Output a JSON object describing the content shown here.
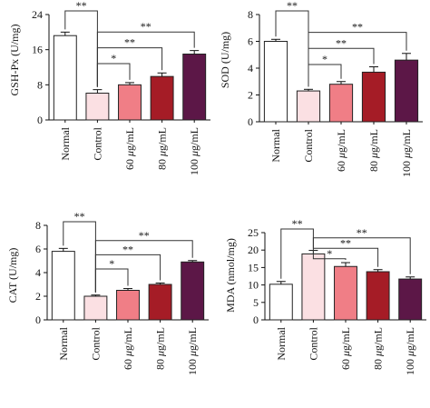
{
  "colors": {
    "Normal": "#ffffff",
    "Control": "#fbe0e3",
    "60 μg/mL": "#f07e86",
    "80 μg/mL": "#a51c26",
    "100 μg/mL": "#5c1747"
  },
  "chart_data": [
    {
      "type": "bar",
      "ylabel": "GSH-Px (U/mg)",
      "ylim": [
        0,
        24
      ],
      "yticks": [
        0,
        8,
        16,
        24
      ],
      "categories": [
        "Normal",
        "Control",
        "60 μg/mL",
        "80 μg/mL",
        "100 μg/mL"
      ],
      "values": [
        19.2,
        6.1,
        8.0,
        9.9,
        15.0
      ],
      "errors": [
        0.8,
        0.8,
        0.5,
        0.8,
        0.8
      ],
      "significance": [
        {
          "from": "Normal",
          "to": "Control",
          "label": "**"
        },
        {
          "from": "Control",
          "to": "60 μg/mL",
          "label": "*"
        },
        {
          "from": "Control",
          "to": "80 μg/mL",
          "label": "**"
        },
        {
          "from": "Control",
          "to": "100 μg/mL",
          "label": "**"
        }
      ]
    },
    {
      "type": "bar",
      "ylabel": "SOD (U/mg)",
      "ylim": [
        0,
        8
      ],
      "yticks": [
        0,
        2,
        4,
        6,
        8
      ],
      "categories": [
        "Normal",
        "Control",
        "60 μg/mL",
        "80 μg/mL",
        "100 μg/mL"
      ],
      "values": [
        6.0,
        2.3,
        2.8,
        3.7,
        4.6
      ],
      "errors": [
        0.15,
        0.12,
        0.2,
        0.4,
        0.5
      ],
      "significance": [
        {
          "from": "Normal",
          "to": "Control",
          "label": "**"
        },
        {
          "from": "Control",
          "to": "60 μg/mL",
          "label": "*"
        },
        {
          "from": "Control",
          "to": "80 μg/mL",
          "label": "**"
        },
        {
          "from": "Control",
          "to": "100 μg/mL",
          "label": "**"
        }
      ]
    },
    {
      "type": "bar",
      "ylabel": "CAT (U/mg)",
      "ylim": [
        0,
        8
      ],
      "yticks": [
        0,
        2,
        4,
        6,
        8
      ],
      "categories": [
        "Normal",
        "Control",
        "60 μg/mL",
        "80 μg/mL",
        "100 μg/mL"
      ],
      "values": [
        5.8,
        2.0,
        2.5,
        3.0,
        4.9
      ],
      "errors": [
        0.25,
        0.1,
        0.15,
        0.12,
        0.12
      ],
      "significance": [
        {
          "from": "Normal",
          "to": "Control",
          "label": "**"
        },
        {
          "from": "Control",
          "to": "60 μg/mL",
          "label": "*"
        },
        {
          "from": "Control",
          "to": "80 μg/mL",
          "label": "**"
        },
        {
          "from": "Control",
          "to": "100 μg/mL",
          "label": "**"
        }
      ]
    },
    {
      "type": "bar",
      "ylabel": "MDA (nmol/mg)",
      "ylim": [
        0,
        25
      ],
      "yticks": [
        0,
        5,
        10,
        15,
        20,
        25
      ],
      "categories": [
        "Normal",
        "Control",
        "60 μg/mL",
        "80 μg/mL",
        "100 μg/mL"
      ],
      "values": [
        10.2,
        18.9,
        15.3,
        13.8,
        11.7
      ],
      "errors": [
        0.8,
        1.0,
        1.1,
        0.6,
        0.6
      ],
      "significance": [
        {
          "from": "Normal",
          "to": "Control",
          "label": "**"
        },
        {
          "from": "Control",
          "to": "60 μg/mL",
          "label": "*"
        },
        {
          "from": "Control",
          "to": "80 μg/mL",
          "label": "**"
        },
        {
          "from": "Control",
          "to": "100 μg/mL",
          "label": "**"
        }
      ]
    }
  ]
}
